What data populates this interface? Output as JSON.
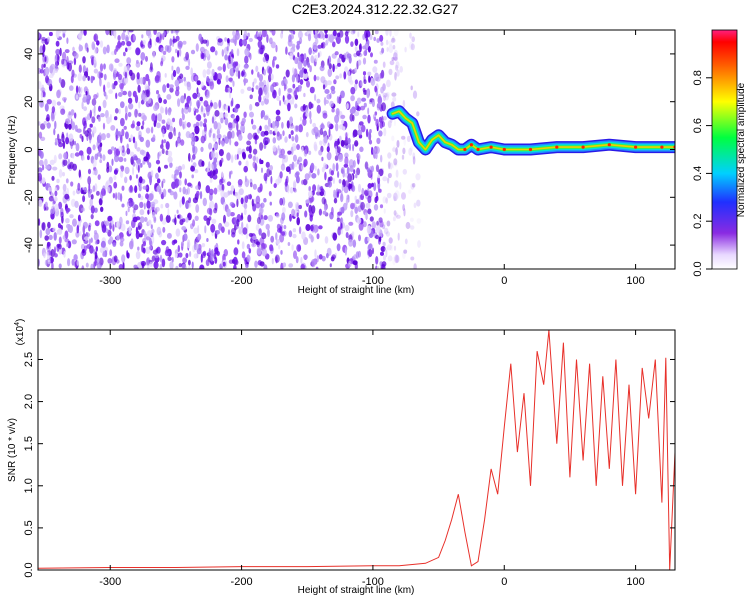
{
  "title": "C2E3.2024.312.22.32.G27",
  "colors": {
    "snr_line": "#e8302a",
    "spectrogram_noise": "#7a1ee8",
    "frame": "#000000"
  },
  "chart_data": [
    {
      "type": "heatmap",
      "name": "spectrogram",
      "xlabel": "Height of straight line (km)",
      "ylabel": "Frequency (Hz)",
      "xlim": [
        -355,
        130
      ],
      "ylim": [
        -50,
        50
      ],
      "xticks": [
        -300,
        -200,
        -100,
        0,
        100
      ],
      "yticks": [
        -40,
        -20,
        0,
        20,
        40
      ],
      "colorbar": {
        "label": "Normalized spectral amplitude",
        "range": [
          0,
          1
        ],
        "ticks": [
          0.0,
          0.2,
          0.4,
          0.6,
          0.8
        ],
        "colormap": "rainbow (violet to red)"
      },
      "noise_region_x": [
        -355,
        -80
      ],
      "signal_track": {
        "x": [
          -85,
          -80,
          -75,
          -70,
          -65,
          -60,
          -55,
          -50,
          -45,
          -40,
          -35,
          -30,
          -25,
          -20,
          -10,
          0,
          20,
          40,
          60,
          80,
          100,
          120,
          130
        ],
        "frequency": [
          15,
          16,
          13,
          11,
          3,
          0,
          4,
          6,
          3,
          2,
          0,
          0,
          2,
          0,
          1,
          0,
          0,
          1,
          1,
          2,
          1,
          1,
          1
        ]
      }
    },
    {
      "type": "line",
      "name": "snr",
      "xlabel": "Height of straight line (km)",
      "ylabel": "SNR (10 * v/v)",
      "multiplier": "(x10",
      "multiplier_exponent": "4",
      "xlim": [
        -355,
        130
      ],
      "ylim": [
        0,
        2.85
      ],
      "xticks": [
        -300,
        -200,
        -100,
        0,
        100
      ],
      "yticks": [
        0.0,
        0.5,
        1.0,
        1.5,
        2.0,
        2.5
      ],
      "series": [
        {
          "x": [
            -355,
            -300,
            -250,
            -200,
            -150,
            -100,
            -80,
            -60,
            -50,
            -45,
            -40,
            -35,
            -30,
            -25,
            -20,
            -15,
            -10,
            -5,
            0,
            5,
            10,
            15,
            20,
            25,
            30,
            34,
            40,
            45,
            50,
            55,
            60,
            65,
            70,
            75,
            80,
            85,
            90,
            95,
            100,
            105,
            110,
            115,
            120,
            123,
            126,
            130
          ],
          "y": [
            0.02,
            0.03,
            0.03,
            0.04,
            0.04,
            0.05,
            0.05,
            0.08,
            0.15,
            0.35,
            0.6,
            0.9,
            0.45,
            0.05,
            0.1,
            0.6,
            1.2,
            0.9,
            1.7,
            2.45,
            1.4,
            2.1,
            1.0,
            2.6,
            2.2,
            2.85,
            1.5,
            2.7,
            1.1,
            2.5,
            1.3,
            2.45,
            1.0,
            2.3,
            1.2,
            2.5,
            1.0,
            2.2,
            0.9,
            2.4,
            1.8,
            2.5,
            0.8,
            2.52,
            0.0,
            1.4
          ]
        }
      ]
    }
  ]
}
